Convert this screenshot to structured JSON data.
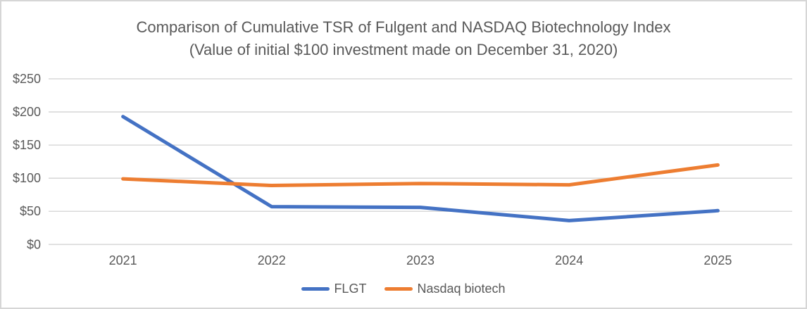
{
  "window": {
    "background": "#ffffff",
    "border_color": "#d6d6d6"
  },
  "chart": {
    "text_color": "#595959",
    "gridline_color": "#d9d9d9"
  },
  "chart_data": {
    "type": "line",
    "title": "Comparison of Cumulative TSR of Fulgent and NASDAQ Biotechnology Index",
    "subtitle": "(Value of initial $100 investment made on December 31, 2020)",
    "categories": [
      "2021",
      "2022",
      "2023",
      "2024",
      "2025"
    ],
    "series": [
      {
        "name": "FLGT",
        "color": "#4472c4",
        "values": [
          193,
          57,
          56,
          36,
          51
        ]
      },
      {
        "name": "Nasdaq biotech",
        "color": "#ed7d31",
        "values": [
          99,
          89,
          92,
          90,
          120
        ]
      }
    ],
    "xlabel": "",
    "ylabel": "",
    "ylim": [
      0,
      250
    ],
    "ytick_step": 50,
    "ytick_labels": [
      "$0",
      "$50",
      "$100",
      "$150",
      "$200",
      "$250"
    ],
    "grid": true,
    "legend_position": "bottom"
  }
}
